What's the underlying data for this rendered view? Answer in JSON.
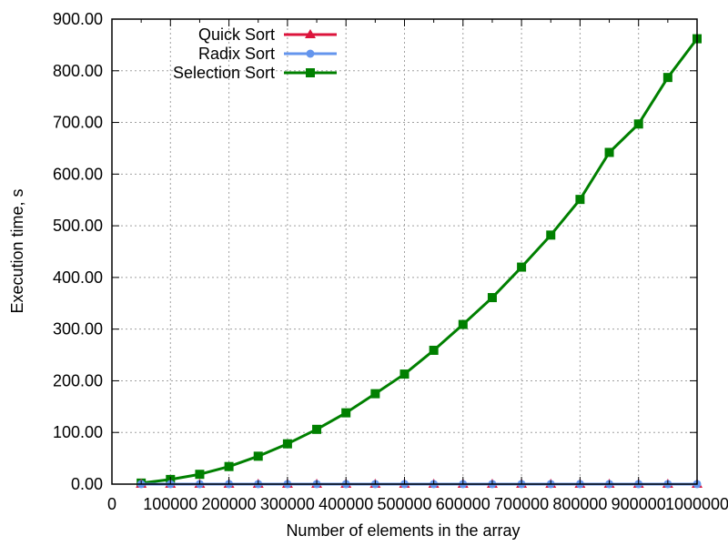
{
  "chart_data": {
    "type": "line",
    "xlabel": "Number of elements in the array",
    "ylabel": "Execution time, s",
    "xlim": [
      0,
      1000000
    ],
    "ylim": [
      0,
      900
    ],
    "grid": true,
    "legend_position": "top-left",
    "x_ticks": [
      0,
      100000,
      200000,
      300000,
      400000,
      500000,
      600000,
      700000,
      800000,
      900000,
      1000000
    ],
    "x_tick_labels": [
      "0",
      "100000",
      "200000",
      "300000",
      "400000",
      "500000",
      "600000",
      "700000",
      "800000",
      "900000",
      "1000000"
    ],
    "y_ticks": [
      0,
      100,
      200,
      300,
      400,
      500,
      600,
      700,
      800,
      900
    ],
    "y_tick_labels": [
      "0.00",
      "100.00",
      "200.00",
      "300.00",
      "400.00",
      "500.00",
      "600.00",
      "700.00",
      "800.00",
      "900.00"
    ],
    "x": [
      50000,
      100000,
      150000,
      200000,
      250000,
      300000,
      350000,
      400000,
      450000,
      500000,
      550000,
      600000,
      650000,
      700000,
      750000,
      800000,
      850000,
      900000,
      950000,
      1000000
    ],
    "series": [
      {
        "name": "Quick Sort",
        "color": "#dc143c",
        "marker": "triangle",
        "values": [
          0.01,
          0.01,
          0.02,
          0.02,
          0.03,
          0.03,
          0.04,
          0.04,
          0.05,
          0.05,
          0.06,
          0.06,
          0.07,
          0.07,
          0.08,
          0.08,
          0.09,
          0.09,
          0.1,
          0.1
        ]
      },
      {
        "name": "Radix Sort",
        "color": "#6495ed",
        "marker": "circle",
        "values": [
          0.01,
          0.01,
          0.01,
          0.02,
          0.02,
          0.02,
          0.03,
          0.03,
          0.03,
          0.04,
          0.04,
          0.04,
          0.05,
          0.05,
          0.05,
          0.06,
          0.06,
          0.06,
          0.07,
          0.07
        ]
      },
      {
        "name": "Selection Sort",
        "color": "#008000",
        "marker": "square",
        "values": [
          2,
          9,
          19,
          34,
          54,
          78,
          106,
          138,
          175,
          213,
          259,
          309,
          361,
          420,
          482,
          551,
          642,
          697,
          787,
          862
        ]
      }
    ]
  }
}
